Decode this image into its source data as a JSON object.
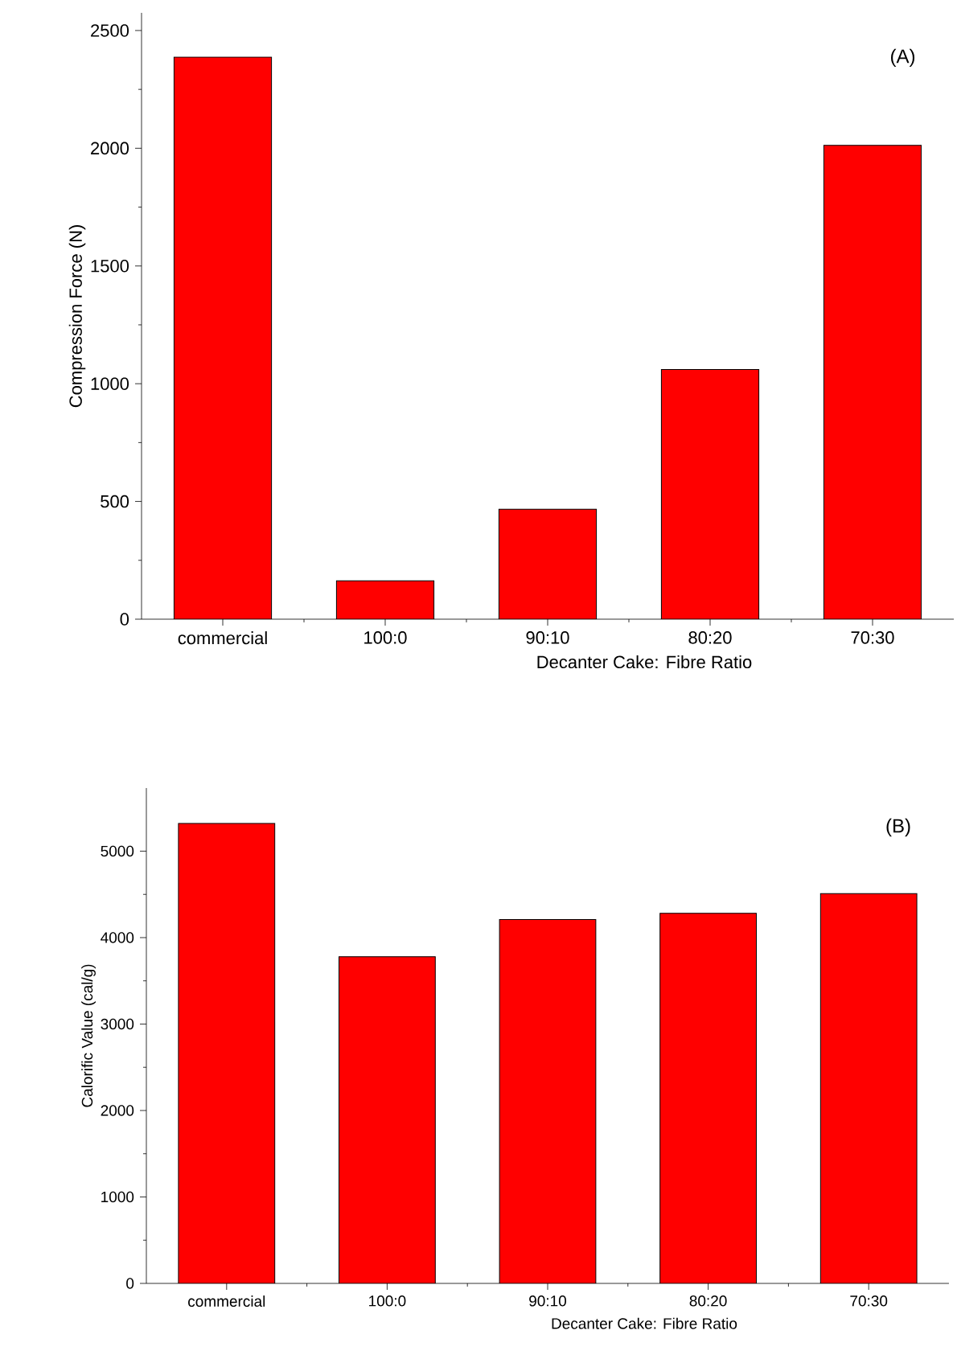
{
  "chart_data": [
    {
      "type": "bar",
      "categories": [
        "commercial",
        "100:0",
        "90:10",
        "80:20",
        "70:30"
      ],
      "values": [
        2387,
        163,
        467,
        1060,
        2012
      ],
      "color": "#ff0000",
      "xlabel": "Decanter Cake: Fibre Ratio",
      "ylabel": "Compression Force (N)",
      "ylim": [
        0,
        2575
      ],
      "yticks": [
        0,
        500,
        1000,
        1500,
        2000,
        2500
      ],
      "annotations": [
        "(A)"
      ]
    },
    {
      "type": "bar",
      "categories": [
        "commercial",
        "100:0",
        "90:10",
        "80:20",
        "70:30"
      ],
      "values": [
        5320,
        3780,
        4210,
        4280,
        4510
      ],
      "color": "#ff0000",
      "xlabel": "Decanter Cake: Fibre Ratio",
      "ylabel": "Calorific Value (cal/g)",
      "ylim": [
        0,
        5730
      ],
      "yticks": [
        0,
        1000,
        2000,
        3000,
        4000,
        5000
      ],
      "annotations": [
        "(B)"
      ]
    }
  ]
}
